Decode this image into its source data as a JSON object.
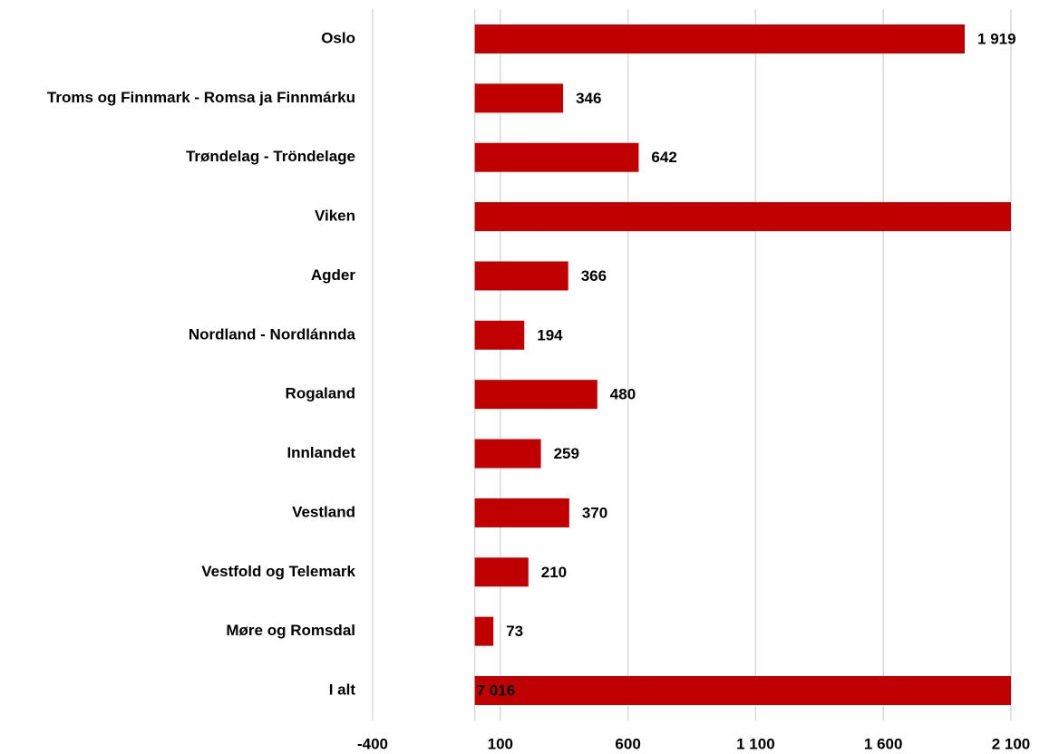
{
  "chart_data": {
    "type": "barh",
    "categories": [
      "Oslo",
      "Troms og Finnmark - Romsa ja Finnmárku",
      "Trøndelag - Tröndelage",
      "Viken",
      "Agder",
      "Nordland - Nordlánnda",
      "Rogaland",
      "Innlandet",
      "Vestland",
      "Vestfold og Telemark",
      "Møre og Romsdal",
      "I alt"
    ],
    "values": [
      1919,
      346,
      642,
      2157,
      366,
      194,
      480,
      259,
      370,
      210,
      73,
      7016
    ],
    "value_labels": [
      "1 919",
      "346",
      "642",
      null,
      "366",
      "194",
      "480",
      "259",
      "370",
      "210",
      "73",
      "7 016"
    ],
    "color": "#c00000",
    "xlim": [
      -400,
      2100
    ],
    "xticks": [
      -400,
      100,
      600,
      {
        "value": 1100,
        "label": "1 100"
      },
      {
        "value": 1600,
        "label": "1 600"
      },
      {
        "value": 2100,
        "label": "2 100"
      }
    ],
    "grid": true
  }
}
